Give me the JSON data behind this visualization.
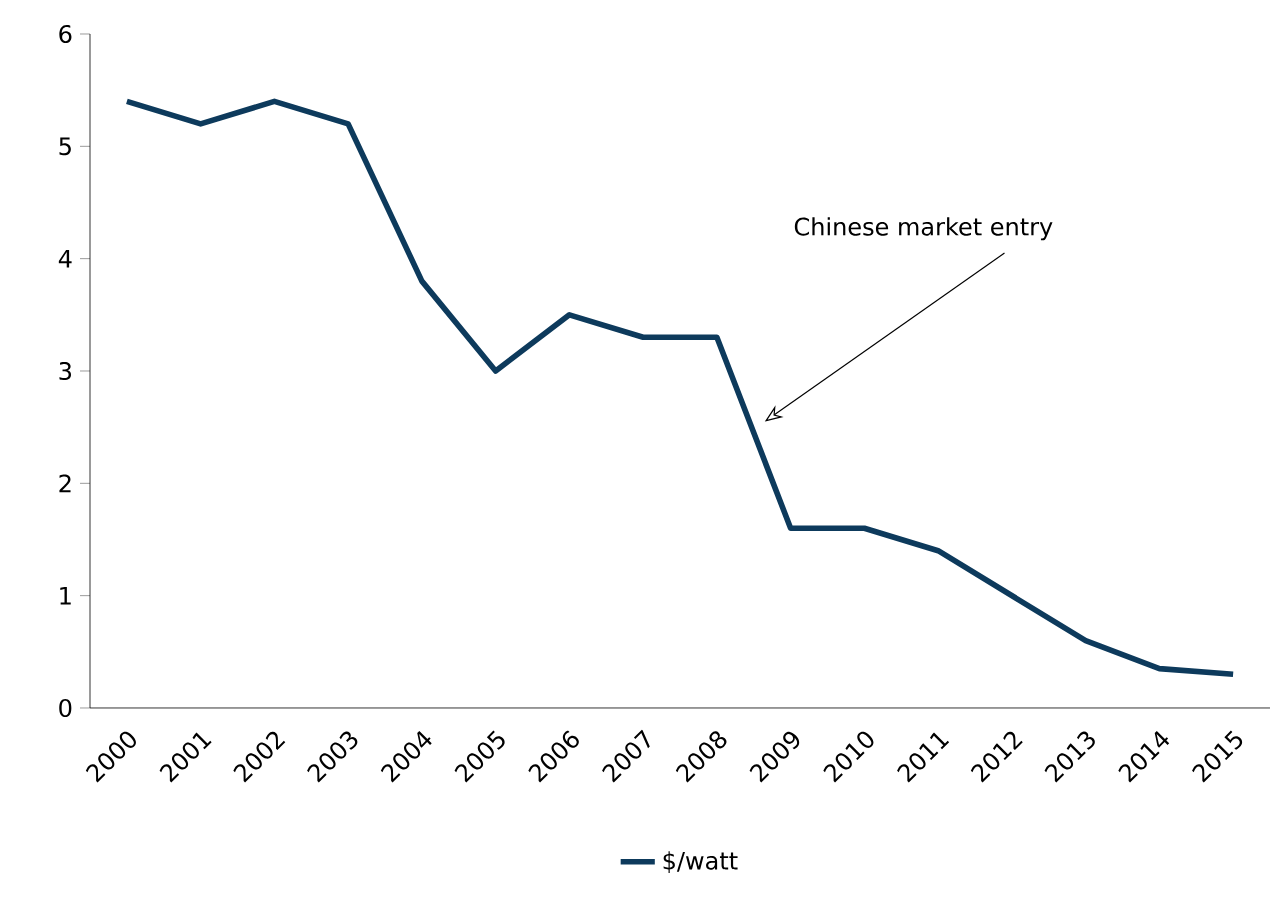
{
  "chart_data": {
    "type": "line",
    "categories": [
      "2000",
      "2001",
      "2002",
      "2003",
      "2004",
      "2005",
      "2006",
      "2007",
      "2008",
      "2009",
      "2010",
      "2011",
      "2012",
      "2013",
      "2014",
      "2015"
    ],
    "series": [
      {
        "name": "$/watt",
        "color": "#0d3a5c",
        "values": [
          5.4,
          5.2,
          5.4,
          5.2,
          3.8,
          3.0,
          3.5,
          3.3,
          3.3,
          1.6,
          1.6,
          1.4,
          1.0,
          0.6,
          0.35,
          0.3
        ]
      }
    ],
    "ylim": [
      0,
      6
    ],
    "yticks": [
      0,
      1,
      2,
      3,
      4,
      5,
      6
    ],
    "grid": false,
    "legend": "bottom",
    "marker": "none",
    "line_style": "solid",
    "annotations": [
      "Chinese market entry"
    ]
  }
}
